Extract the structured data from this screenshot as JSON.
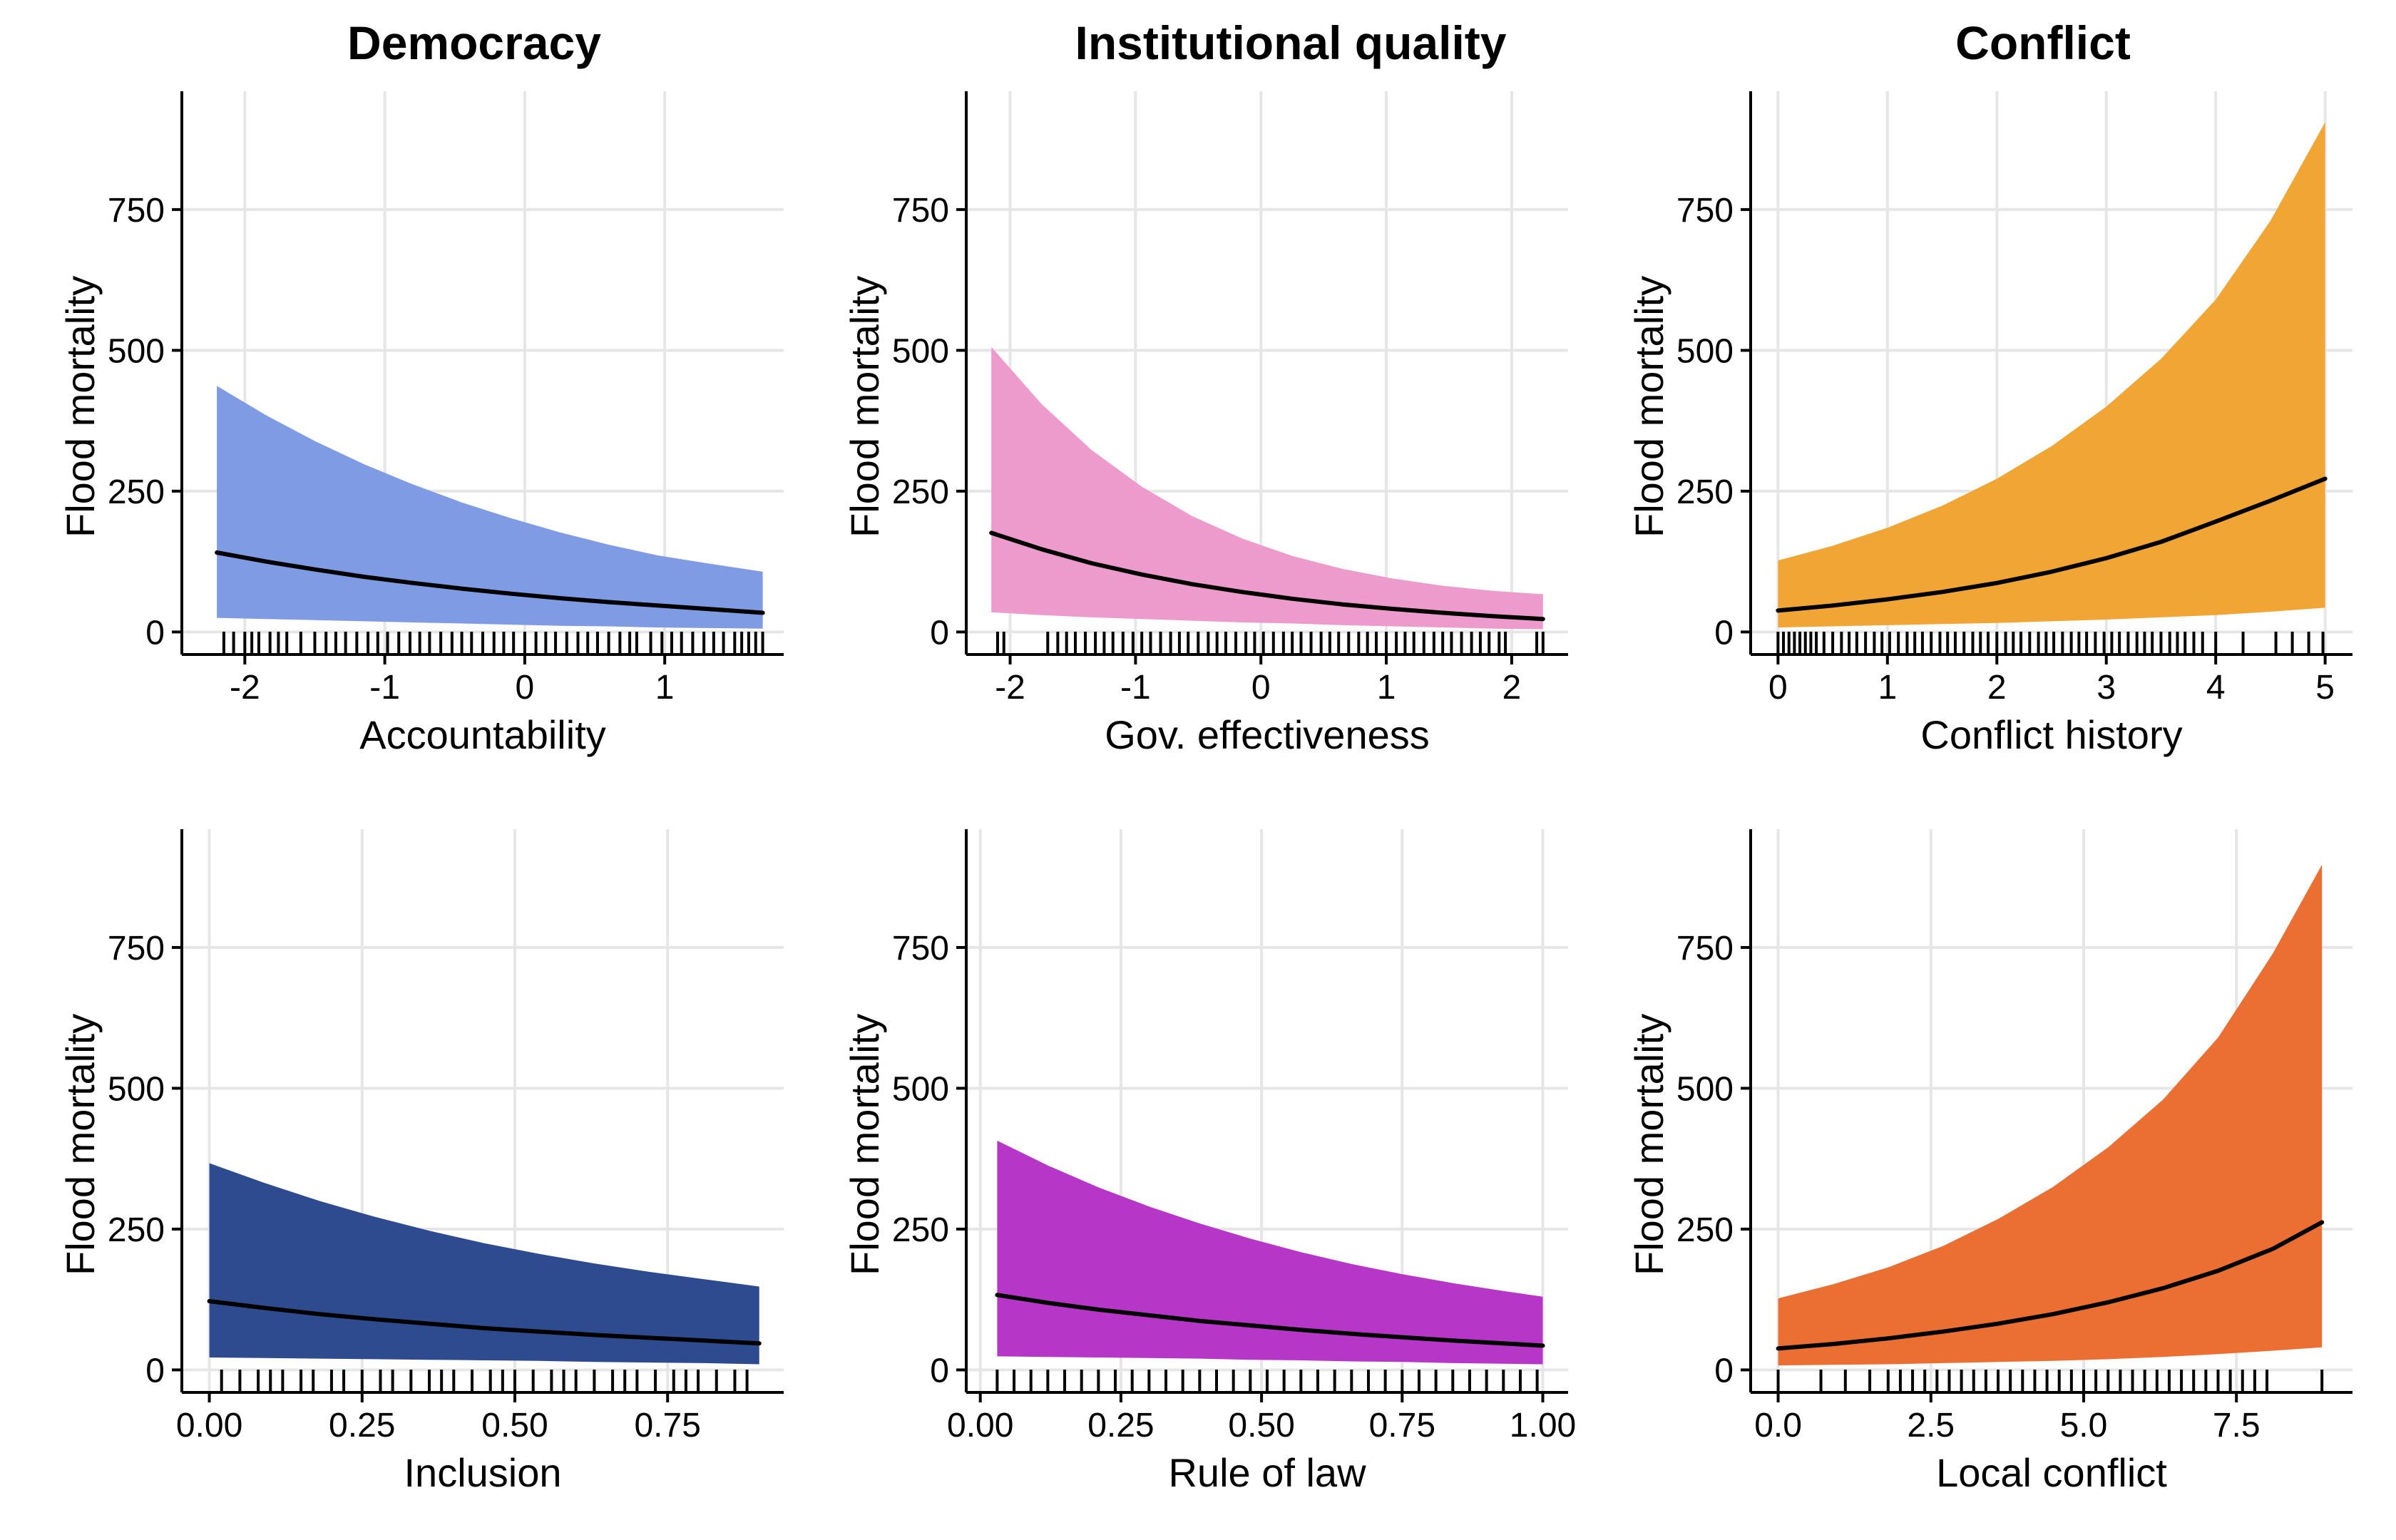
{
  "column_titles": [
    "Democracy",
    "Institutional quality",
    "Conflict"
  ],
  "chart_data": [
    {
      "type": "area",
      "panel": "Democracy (top)",
      "xlabel": "Accountability",
      "ylabel": "Flood mortality",
      "x_ticks": [
        -2,
        -1,
        0,
        1
      ],
      "x_tick_labels": [
        "-2",
        "-1",
        "0",
        "1"
      ],
      "xlim": [
        -2.45,
        1.85
      ],
      "y_ticks": [
        0,
        250,
        500,
        750
      ],
      "y_tick_labels": [
        "0",
        "250",
        "500",
        "750"
      ],
      "ylim": [
        -40,
        960
      ],
      "grid": true,
      "fill_color": "#7E9BE3",
      "x": [
        -2.2,
        -1.85,
        -1.5,
        -1.15,
        -0.8,
        -0.45,
        -0.1,
        0.25,
        0.6,
        0.95,
        1.3,
        1.7
      ],
      "estimate": [
        141,
        125,
        111,
        98,
        87,
        77,
        68,
        60,
        53,
        47,
        41,
        34
      ],
      "upper": [
        437,
        385,
        339,
        298,
        262,
        230,
        202,
        177,
        155,
        136,
        122,
        107
      ],
      "lower": [
        25,
        23,
        21,
        19,
        17,
        15,
        13,
        11,
        10,
        8,
        7,
        6
      ],
      "rug": [
        -2.15,
        -2.08,
        -2.0,
        -1.95,
        -1.9,
        -1.82,
        -1.76,
        -1.7,
        -1.6,
        -1.5,
        -1.42,
        -1.35,
        -1.28,
        -1.2,
        -1.12,
        -1.05,
        -0.98,
        -0.9,
        -0.82,
        -0.75,
        -0.68,
        -0.6,
        -0.52,
        -0.45,
        -0.38,
        -0.3,
        -0.22,
        -0.15,
        -0.08,
        0.0,
        0.08,
        0.15,
        0.22,
        0.3,
        0.38,
        0.45,
        0.52,
        0.6,
        0.68,
        0.75,
        0.8,
        0.9,
        0.98,
        1.05,
        1.12,
        1.2,
        1.28,
        1.35,
        1.42,
        1.5,
        1.55,
        1.6,
        1.65,
        1.7
      ]
    },
    {
      "type": "area",
      "panel": "Institutional quality (top)",
      "xlabel": "Gov. effectiveness",
      "ylabel": "Flood mortality",
      "x_ticks": [
        -2,
        -1,
        0,
        1,
        2
      ],
      "x_tick_labels": [
        "-2",
        "-1",
        "0",
        "1",
        "2"
      ],
      "xlim": [
        -2.35,
        2.45
      ],
      "y_ticks": [
        0,
        250,
        500,
        750
      ],
      "y_tick_labels": [
        "0",
        "250",
        "500",
        "750"
      ],
      "ylim": [
        -40,
        960
      ],
      "grid": true,
      "fill_color": "#ED9BCD",
      "x": [
        -2.15,
        -1.75,
        -1.35,
        -0.95,
        -0.55,
        -0.15,
        0.25,
        0.65,
        1.05,
        1.45,
        1.85,
        2.25
      ],
      "estimate": [
        176,
        147,
        122,
        102,
        85,
        71,
        59,
        49,
        41,
        34,
        28,
        23
      ],
      "upper": [
        506,
        405,
        323,
        258,
        206,
        166,
        135,
        112,
        95,
        82,
        73,
        67
      ],
      "lower": [
        35,
        30,
        26,
        23,
        20,
        17,
        15,
        12,
        10,
        8,
        6,
        5
      ],
      "rug": [
        -2.1,
        -2.05,
        -1.7,
        -1.62,
        -1.55,
        -1.48,
        -1.4,
        -1.32,
        -1.25,
        -1.18,
        -1.1,
        -1.02,
        -0.95,
        -0.88,
        -0.8,
        -0.72,
        -0.65,
        -0.58,
        -0.5,
        -0.42,
        -0.35,
        -0.28,
        -0.2,
        -0.12,
        -0.05,
        0.02,
        0.1,
        0.18,
        0.25,
        0.32,
        0.4,
        0.48,
        0.55,
        0.62,
        0.7,
        0.78,
        0.85,
        0.92,
        1.0,
        1.08,
        1.15,
        1.22,
        1.3,
        1.38,
        1.45,
        1.52,
        1.6,
        1.68,
        1.75,
        1.82,
        1.9,
        1.95,
        2.2,
        2.25
      ]
    },
    {
      "type": "area",
      "panel": "Conflict (top)",
      "xlabel": "Conflict history",
      "ylabel": "Flood mortality",
      "x_ticks": [
        0,
        1,
        2,
        3,
        4,
        5
      ],
      "x_tick_labels": [
        "0",
        "1",
        "2",
        "3",
        "4",
        "5"
      ],
      "xlim": [
        -0.25,
        5.25
      ],
      "y_ticks": [
        0,
        250,
        500,
        750
      ],
      "y_tick_labels": [
        "0",
        "250",
        "500",
        "750"
      ],
      "ylim": [
        -40,
        960
      ],
      "grid": true,
      "fill_color": "#F0A535",
      "x": [
        0,
        0.5,
        1,
        1.5,
        2,
        2.5,
        3,
        3.5,
        4,
        4.5,
        5
      ],
      "estimate": [
        38,
        47,
        58,
        71,
        87,
        107,
        131,
        160,
        196,
        233,
        272
      ],
      "upper": [
        127,
        153,
        185,
        224,
        272,
        330,
        400,
        485,
        590,
        730,
        905
      ],
      "lower": [
        8,
        10,
        12,
        14,
        16,
        19,
        22,
        26,
        30,
        36,
        43
      ],
      "rug": [
        0.0,
        0.05,
        0.1,
        0.15,
        0.2,
        0.25,
        0.3,
        0.35,
        0.42,
        0.5,
        0.58,
        0.65,
        0.72,
        0.8,
        0.88,
        0.95,
        1.02,
        1.1,
        1.18,
        1.25,
        1.32,
        1.4,
        1.48,
        1.55,
        1.62,
        1.7,
        1.78,
        1.85,
        1.92,
        2.0,
        2.08,
        2.15,
        2.22,
        2.3,
        2.38,
        2.45,
        2.52,
        2.6,
        2.68,
        2.75,
        2.82,
        2.9,
        2.98,
        3.05,
        3.12,
        3.2,
        3.28,
        3.35,
        3.42,
        3.5,
        3.58,
        3.65,
        3.72,
        3.8,
        3.88,
        4.0,
        4.25,
        4.55,
        4.7,
        4.85,
        4.98
      ]
    },
    {
      "type": "area",
      "panel": "Democracy (bottom)",
      "xlabel": "Inclusion",
      "ylabel": "Flood mortality",
      "x_ticks": [
        0,
        0.25,
        0.5,
        0.75
      ],
      "x_tick_labels": [
        "0.00",
        "0.25",
        "0.50",
        "0.75"
      ],
      "xlim": [
        -0.045,
        0.94
      ],
      "y_ticks": [
        0,
        250,
        500,
        750
      ],
      "y_tick_labels": [
        "0",
        "250",
        "500",
        "750"
      ],
      "ylim": [
        -40,
        960
      ],
      "grid": true,
      "fill_color": "#2D4B8E",
      "x": [
        0,
        0.09,
        0.18,
        0.27,
        0.36,
        0.45,
        0.54,
        0.63,
        0.72,
        0.81,
        0.9
      ],
      "estimate": [
        122,
        110,
        99,
        90,
        82,
        74,
        68,
        62,
        57,
        52,
        47
      ],
      "upper": [
        367,
        332,
        300,
        272,
        247,
        225,
        206,
        189,
        174,
        161,
        148
      ],
      "lower": [
        22,
        21,
        20,
        19,
        18,
        17,
        16,
        14,
        13,
        12,
        10
      ],
      "rug": [
        0.02,
        0.05,
        0.08,
        0.1,
        0.12,
        0.15,
        0.17,
        0.2,
        0.22,
        0.25,
        0.28,
        0.3,
        0.33,
        0.36,
        0.38,
        0.4,
        0.43,
        0.46,
        0.48,
        0.5,
        0.53,
        0.56,
        0.58,
        0.6,
        0.63,
        0.66,
        0.68,
        0.7,
        0.73,
        0.76,
        0.78,
        0.8,
        0.83,
        0.86,
        0.88
      ]
    },
    {
      "type": "area",
      "panel": "Institutional quality (bottom)",
      "xlabel": "Rule of law",
      "ylabel": "Flood mortality",
      "x_ticks": [
        0,
        0.25,
        0.5,
        0.75,
        1
      ],
      "x_tick_labels": [
        "0.00",
        "0.25",
        "0.50",
        "0.75",
        "1.00"
      ],
      "xlim": [
        -0.025,
        1.045
      ],
      "y_ticks": [
        0,
        250,
        500,
        750
      ],
      "y_tick_labels": [
        "0",
        "250",
        "500",
        "750"
      ],
      "ylim": [
        -40,
        960
      ],
      "grid": true,
      "fill_color": "#B636C8",
      "x": [
        0.03,
        0.12,
        0.21,
        0.3,
        0.39,
        0.48,
        0.57,
        0.66,
        0.75,
        0.84,
        0.93,
        1.0
      ],
      "estimate": [
        133,
        119,
        107,
        97,
        87,
        79,
        71,
        64,
        58,
        52,
        47,
        43
      ],
      "upper": [
        407,
        363,
        324,
        290,
        260,
        233,
        209,
        188,
        170,
        154,
        140,
        130
      ],
      "lower": [
        24,
        23,
        22,
        21,
        20,
        18,
        17,
        15,
        14,
        12,
        11,
        10
      ],
      "rug": [
        0.03,
        0.06,
        0.09,
        0.12,
        0.15,
        0.18,
        0.21,
        0.24,
        0.27,
        0.3,
        0.33,
        0.36,
        0.39,
        0.42,
        0.45,
        0.48,
        0.51,
        0.54,
        0.57,
        0.6,
        0.63,
        0.66,
        0.69,
        0.72,
        0.75,
        0.78,
        0.81,
        0.84,
        0.87,
        0.9,
        0.93,
        0.96,
        0.99
      ]
    },
    {
      "type": "area",
      "panel": "Conflict (bottom)",
      "xlabel": "Local conflict",
      "ylabel": "Flood mortality",
      "x_ticks": [
        0,
        2.5,
        5,
        7.5
      ],
      "x_tick_labels": [
        "0.0",
        "2.5",
        "5.0",
        "7.5"
      ],
      "xlim": [
        -0.45,
        9.4
      ],
      "y_ticks": [
        0,
        250,
        500,
        750
      ],
      "y_tick_labels": [
        "0",
        "250",
        "500",
        "750"
      ],
      "ylim": [
        -40,
        960
      ],
      "grid": true,
      "fill_color": "#EB6F33",
      "x": [
        0,
        0.9,
        1.8,
        2.7,
        3.6,
        4.5,
        5.4,
        6.3,
        7.2,
        8.1,
        8.9
      ],
      "estimate": [
        38,
        46,
        56,
        68,
        82,
        99,
        120,
        145,
        176,
        215,
        262
      ],
      "upper": [
        127,
        152,
        182,
        220,
        268,
        325,
        395,
        480,
        590,
        740,
        897
      ],
      "lower": [
        8,
        9,
        10,
        12,
        14,
        16,
        19,
        23,
        28,
        34,
        40
      ],
      "rug": [
        0.0,
        0.7,
        1.1,
        1.5,
        1.8,
        2.0,
        2.2,
        2.4,
        2.6,
        2.8,
        3.0,
        3.2,
        3.4,
        3.6,
        3.8,
        4.0,
        4.2,
        4.4,
        4.6,
        4.8,
        5.0,
        5.2,
        5.4,
        5.6,
        5.8,
        6.0,
        6.2,
        6.4,
        6.6,
        6.8,
        7.0,
        7.2,
        7.4,
        7.6,
        7.8,
        8.0,
        8.9
      ]
    }
  ]
}
